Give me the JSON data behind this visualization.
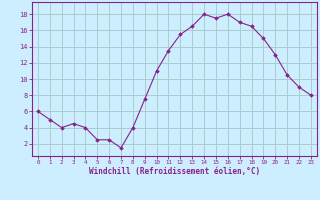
{
  "x": [
    0,
    1,
    2,
    3,
    4,
    5,
    6,
    7,
    8,
    9,
    10,
    11,
    12,
    13,
    14,
    15,
    16,
    17,
    18,
    19,
    20,
    21,
    22,
    23
  ],
  "y": [
    6,
    5,
    4,
    4.5,
    4,
    2.5,
    2.5,
    1.5,
    4,
    7.5,
    11,
    13.5,
    15.5,
    16.5,
    18,
    17.5,
    18,
    17,
    16.5,
    15,
    13,
    10.5,
    9,
    8
  ],
  "line_color": "#882288",
  "marker_color": "#882288",
  "bg_color": "#cceeff",
  "grid_color": "#aacccc",
  "xlabel": "Windchill (Refroidissement éolien,°C)",
  "xlabel_color": "#882288",
  "yticks": [
    2,
    4,
    6,
    8,
    10,
    12,
    14,
    16,
    18
  ],
  "xticks": [
    0,
    1,
    2,
    3,
    4,
    5,
    6,
    7,
    8,
    9,
    10,
    11,
    12,
    13,
    14,
    15,
    16,
    17,
    18,
    19,
    20,
    21,
    22,
    23
  ],
  "xlim": [
    -0.5,
    23.5
  ],
  "ylim": [
    0.5,
    19.5
  ],
  "tick_color": "#882288",
  "spine_color": "#882288"
}
